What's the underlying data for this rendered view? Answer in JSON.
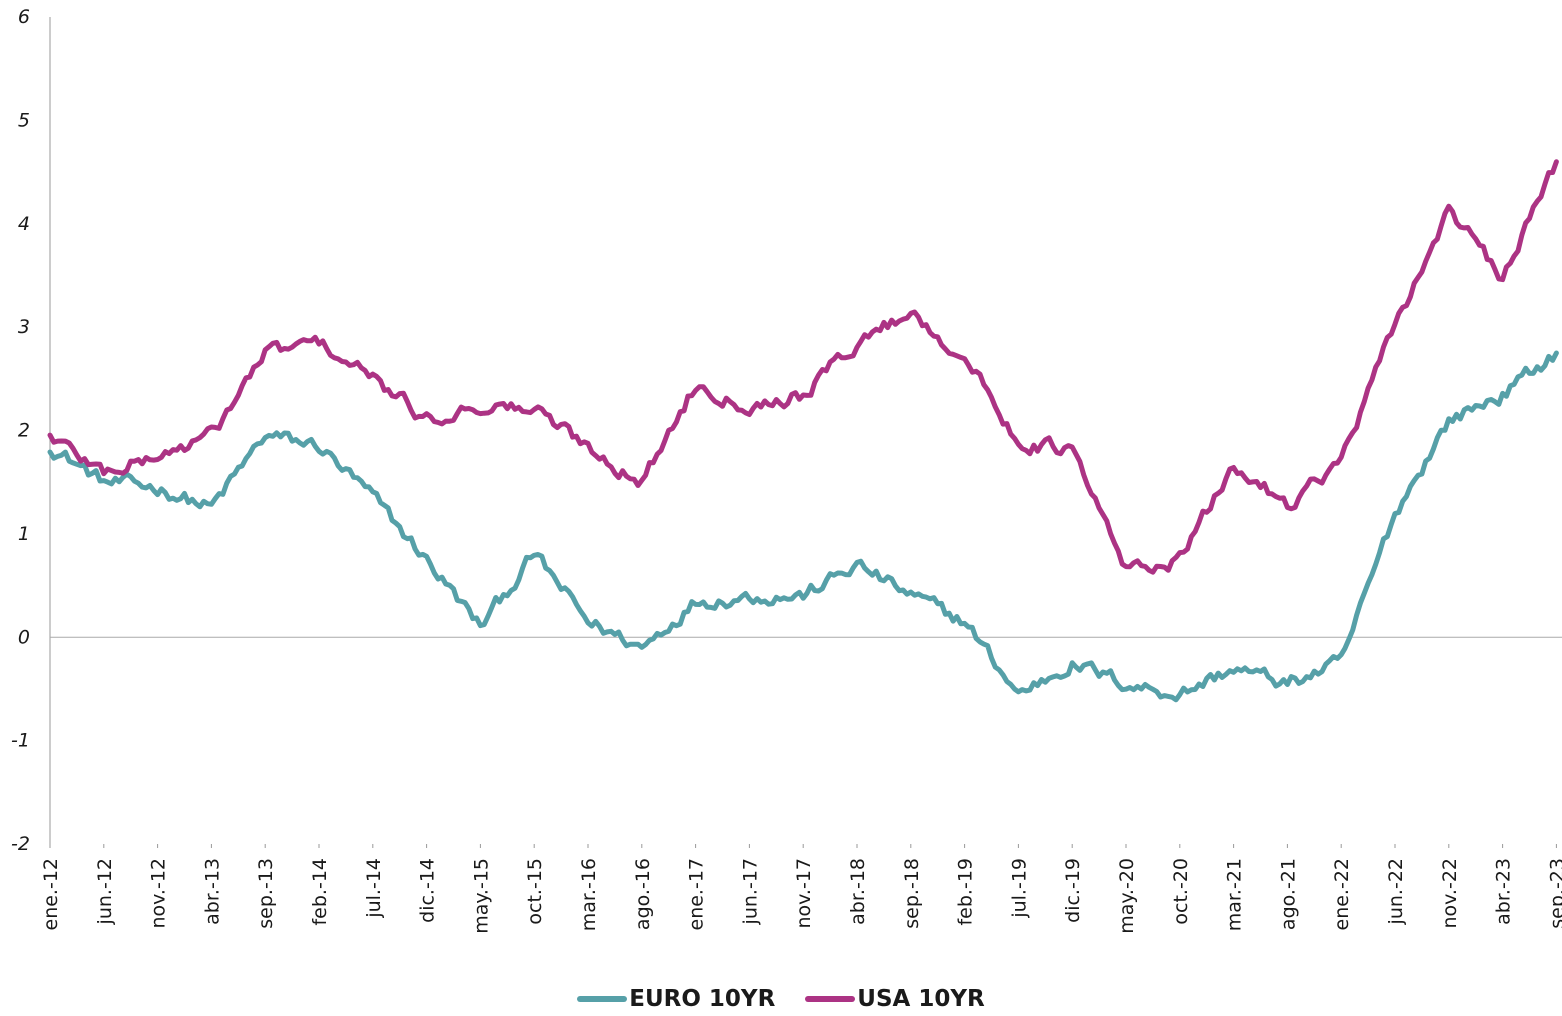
{
  "chart_data": {
    "type": "line",
    "title": "",
    "xlabel": "",
    "ylabel": "",
    "ylim": [
      -2,
      6
    ],
    "yticks": [
      "6",
      "5",
      "4",
      "3",
      "2",
      "1",
      "0",
      "-1",
      "-2"
    ],
    "x_tick_labels": [
      "ene.-12",
      "jun.-12",
      "nov.-12",
      "abr.-13",
      "sep.-13",
      "feb.-14",
      "jul.-14",
      "dic.-14",
      "may.-15",
      "oct.-15",
      "mar.-16",
      "ago.-16",
      "ene.-17",
      "jun.-17",
      "nov.-17",
      "abr.-18",
      "sep.-18",
      "feb.-19",
      "jul.-19",
      "dic.-19",
      "may.-20",
      "oct.-20",
      "mar.-21",
      "ago.-21",
      "ene.-22",
      "jun.-22",
      "nov.-22",
      "abr.-23",
      "sep.-23"
    ],
    "grid": false,
    "legend_position": "bottom",
    "series": [
      {
        "name": "EURO 10YR",
        "color": "#56a0a8",
        "values": [
          1.85,
          1.5,
          1.45,
          1.25,
          1.95,
          1.85,
          1.35,
          0.75,
          0.1,
          0.8,
          0.15,
          -0.1,
          0.35,
          0.4,
          0.4,
          0.7,
          0.4,
          0.15,
          -0.55,
          -0.25,
          -0.45,
          -0.55,
          -0.3,
          -0.45,
          -0.25,
          1.2,
          2.1,
          2.35,
          2.75
        ]
      },
      {
        "name": "USA 10YR",
        "color": "#ac3384",
        "values": [
          1.95,
          1.6,
          1.75,
          1.95,
          2.75,
          2.85,
          2.5,
          2.1,
          2.25,
          2.2,
          1.85,
          1.5,
          2.45,
          2.25,
          2.35,
          2.85,
          3.15,
          2.7,
          1.9,
          1.8,
          0.65,
          0.75,
          1.65,
          1.3,
          1.7,
          3.0,
          4.15,
          3.45,
          4.6
        ]
      }
    ]
  }
}
